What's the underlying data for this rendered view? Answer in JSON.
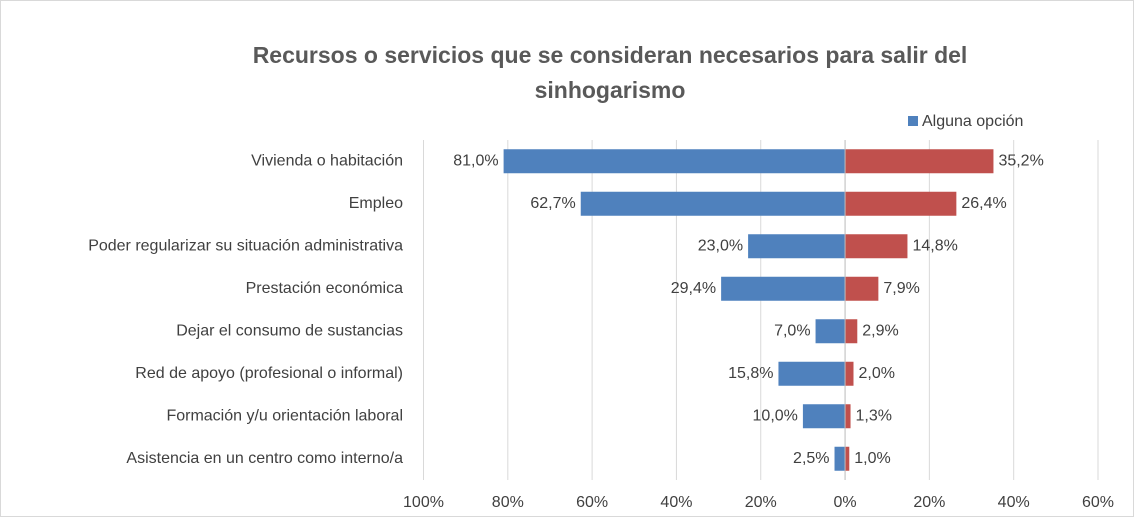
{
  "chart_data": {
    "type": "diverging_bar",
    "title": [
      "Recursos o servicios que se consideran necesarios para salir del",
      "sinhogarismo"
    ],
    "categories": [
      "Vivienda o habitación",
      "Empleo",
      "Poder regularizar su situación administrativa",
      "Prestación económica",
      "Dejar el consumo de sustancias",
      "Red de apoyo (profesional o informal)",
      "Formación y/u orientación laboral",
      "Asistencia en un centro como interno/a"
    ],
    "series": [
      {
        "name": "Alguna opción",
        "color": "#4f81bd",
        "values": [
          -81.0,
          -62.7,
          -23.0,
          -29.4,
          -7.0,
          -15.8,
          -10.0,
          -2.5
        ],
        "value_labels": [
          "81,0%",
          "62,7%",
          "23,0%",
          "29,4%",
          "7,0%",
          "15,8%",
          "10,0%",
          "2,5%"
        ]
      },
      {
        "color": "#c0504d",
        "values": [
          35.2,
          26.4,
          14.8,
          7.9,
          2.9,
          2.0,
          1.3,
          1.0
        ],
        "value_labels": [
          "35,2%",
          "26,4%",
          "14,8%",
          "7,9%",
          "2,9%",
          "2,0%",
          "1,3%",
          "1,0%"
        ]
      }
    ],
    "xlim": [
      -100,
      60
    ],
    "xticks": [
      {
        "value": -100,
        "label": "100%"
      },
      {
        "value": -80,
        "label": "80%"
      },
      {
        "value": -60,
        "label": "60%"
      },
      {
        "value": -40,
        "label": "40%"
      },
      {
        "value": -20,
        "label": "20%"
      },
      {
        "value": 0,
        "label": "0%"
      },
      {
        "value": 20,
        "label": "20%"
      },
      {
        "value": 40,
        "label": "40%"
      },
      {
        "value": 60,
        "label": "60%"
      }
    ],
    "grid": true,
    "legend": "top-right"
  }
}
